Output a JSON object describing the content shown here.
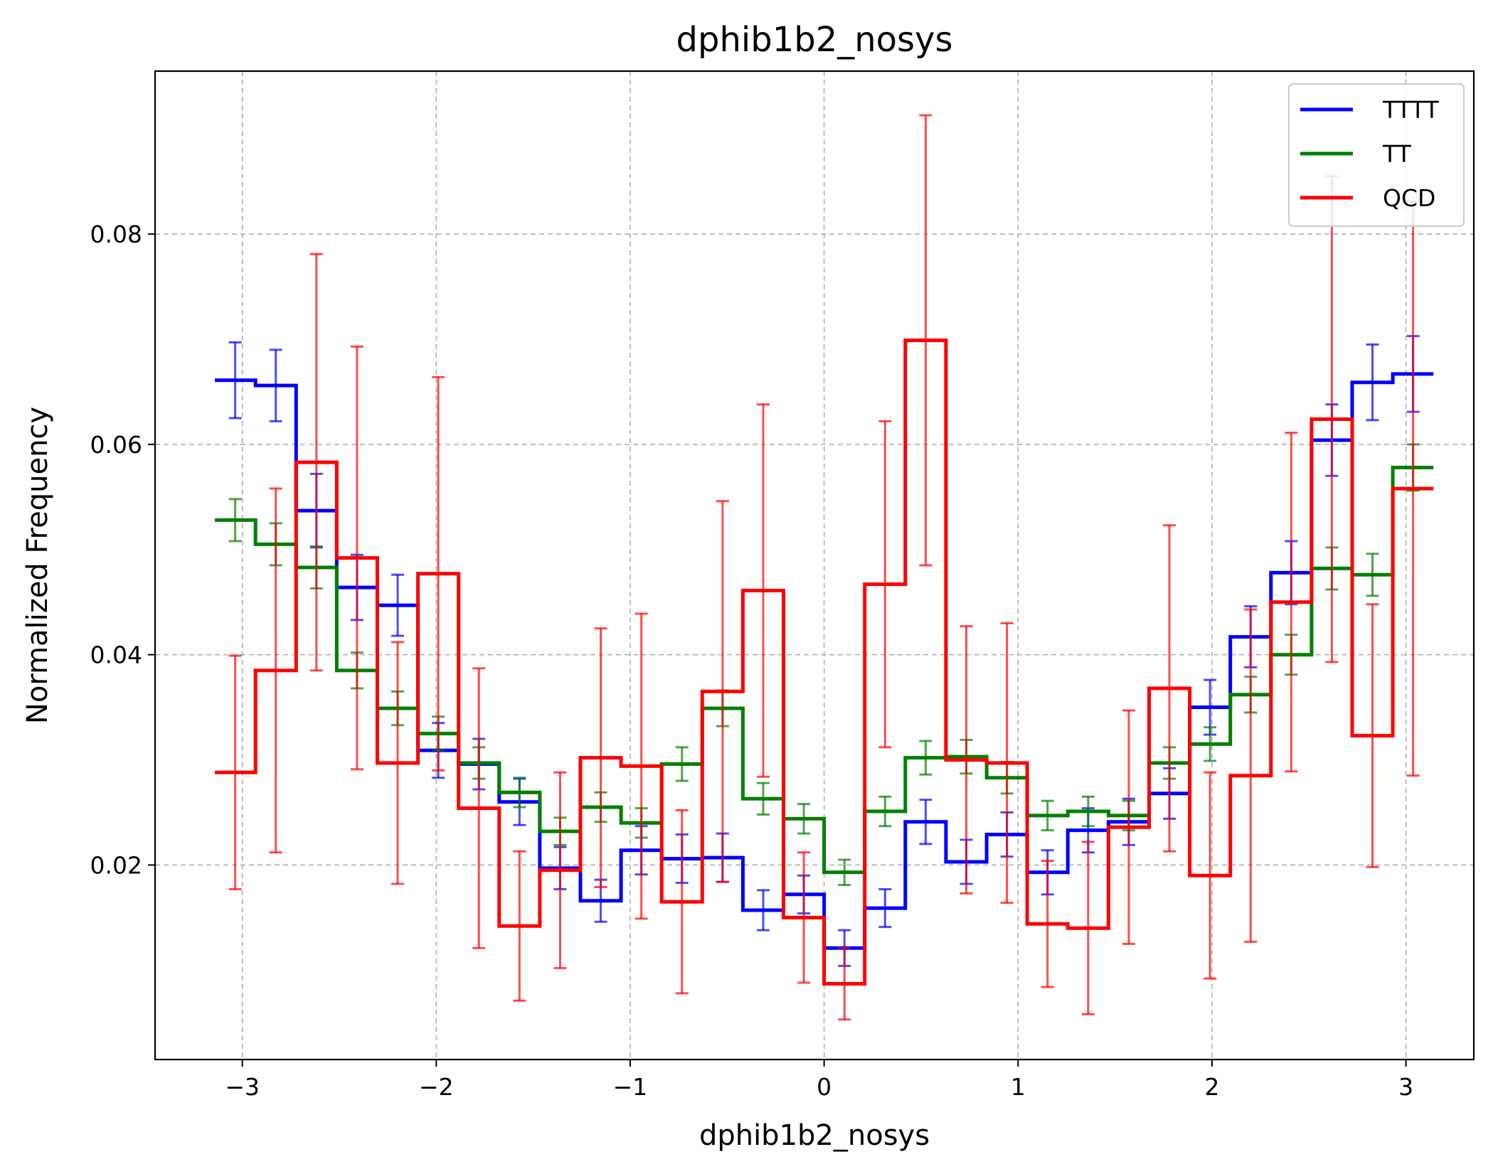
{
  "chart_data": {
    "type": "histogram-step",
    "title": "dphib1b2_nosys",
    "xlabel": "dphib1b2_nosys",
    "ylabel": "Normalized Frequency",
    "xlim": [
      -3.45,
      3.35
    ],
    "ylim": [
      0.0015,
      0.0955
    ],
    "x_ticks": [
      -3,
      -2,
      -1,
      0,
      1,
      2,
      3
    ],
    "x_tick_labels": [
      "−3",
      "−2",
      "−1",
      "0",
      "1",
      "2",
      "3"
    ],
    "y_ticks": [
      0.02,
      0.04,
      0.06,
      0.08
    ],
    "y_tick_labels": [
      "0.02",
      "0.04",
      "0.06",
      "0.08"
    ],
    "grid": true,
    "legend_position": "top-right",
    "bin_edges": [
      -3.1416,
      -2.9322,
      -2.7227,
      -2.5133,
      -2.3038,
      -2.0944,
      -1.885,
      -1.6755,
      -1.4661,
      -1.2566,
      -1.0472,
      -0.8378,
      -0.6283,
      -0.4189,
      -0.2094,
      0.0,
      0.2094,
      0.4189,
      0.6283,
      0.8378,
      1.0472,
      1.2566,
      1.4661,
      1.6755,
      1.885,
      2.0944,
      2.3038,
      2.5133,
      2.7227,
      2.9322,
      3.1416
    ],
    "series": [
      {
        "name": "TTTT",
        "color": "#0000ff",
        "values": [
          0.0661,
          0.0656,
          0.0537,
          0.0464,
          0.0447,
          0.0309,
          0.0296,
          0.026,
          0.0197,
          0.0166,
          0.0214,
          0.0206,
          0.0207,
          0.0157,
          0.0172,
          0.0121,
          0.0159,
          0.0241,
          0.0203,
          0.0229,
          0.0193,
          0.0233,
          0.0241,
          0.0268,
          0.035,
          0.0417,
          0.0478,
          0.0604,
          0.0659,
          0.0667
        ],
        "errors": [
          0.0036,
          0.0034,
          0.0035,
          0.0031,
          0.0029,
          0.0026,
          0.0024,
          0.0022,
          0.002,
          0.002,
          0.0023,
          0.0023,
          0.0023,
          0.0019,
          0.0018,
          0.0017,
          0.0018,
          0.0021,
          0.0021,
          0.0021,
          0.0021,
          0.0021,
          0.0022,
          0.0024,
          0.0026,
          0.0029,
          0.003,
          0.0034,
          0.0036,
          0.0036
        ]
      },
      {
        "name": "TT",
        "color": "#008000",
        "values": [
          0.0528,
          0.0505,
          0.0483,
          0.0385,
          0.0349,
          0.0325,
          0.0297,
          0.0269,
          0.0232,
          0.0255,
          0.024,
          0.0296,
          0.0349,
          0.0263,
          0.0244,
          0.0193,
          0.0251,
          0.0302,
          0.0303,
          0.0283,
          0.0247,
          0.0251,
          0.0247,
          0.0297,
          0.0315,
          0.0362,
          0.04,
          0.0482,
          0.0476,
          0.0578
        ],
        "errors": [
          0.002,
          0.002,
          0.002,
          0.0017,
          0.0016,
          0.0016,
          0.0015,
          0.0014,
          0.0013,
          0.0014,
          0.0014,
          0.0016,
          0.0017,
          0.0015,
          0.0014,
          0.0012,
          0.0014,
          0.0016,
          0.0016,
          0.0015,
          0.0014,
          0.0014,
          0.0014,
          0.0015,
          0.0016,
          0.0017,
          0.0019,
          0.002,
          0.002,
          0.0022
        ]
      },
      {
        "name": "QCD",
        "color": "#ff0000",
        "values": [
          0.0288,
          0.0385,
          0.0583,
          0.0492,
          0.0297,
          0.0477,
          0.0254,
          0.0142,
          0.0195,
          0.0302,
          0.0294,
          0.0165,
          0.0365,
          0.0461,
          0.015,
          0.0087,
          0.0467,
          0.0699,
          0.03,
          0.0297,
          0.0144,
          0.014,
          0.0236,
          0.0368,
          0.019,
          0.0285,
          0.045,
          0.0624,
          0.0323,
          0.0558
        ],
        "errors": [
          0.0111,
          0.0173,
          0.0198,
          0.0201,
          0.0115,
          0.0187,
          0.0133,
          0.0071,
          0.0093,
          0.0123,
          0.0145,
          0.0087,
          0.0181,
          0.0177,
          0.0062,
          0.0034,
          0.0155,
          0.0214,
          0.0127,
          0.0133,
          0.006,
          0.0082,
          0.0111,
          0.0155,
          0.0098,
          0.0158,
          0.0161,
          0.0231,
          0.0125,
          0.0273
        ]
      }
    ]
  }
}
